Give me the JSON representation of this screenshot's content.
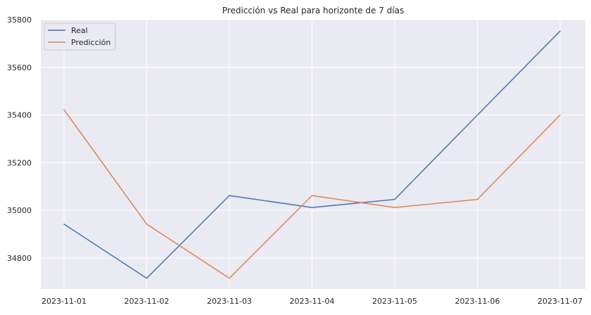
{
  "chart_data": {
    "type": "line",
    "title": "Predicción vs Real para horizonte de 7 días",
    "xlabel": "",
    "ylabel": "",
    "x": [
      "2023-11-01",
      "2023-11-02",
      "2023-11-03",
      "2023-11-04",
      "2023-11-05",
      "2023-11-06",
      "2023-11-07"
    ],
    "yticks": [
      34800,
      35000,
      35200,
      35400,
      35600,
      35800
    ],
    "ylim": [
      34670,
      35800
    ],
    "grid": true,
    "legend_position": "top-left",
    "background_color": "#eaeaf2",
    "series": [
      {
        "name": "Real",
        "color": "#4c72b0",
        "values": [
          34942,
          34715,
          35062,
          35012,
          35046,
          35400,
          35752
        ]
      },
      {
        "name": "Predicción",
        "color": "#dd8452",
        "values": [
          35422,
          34942,
          34715,
          35062,
          35012,
          35046,
          35400
        ]
      }
    ]
  }
}
